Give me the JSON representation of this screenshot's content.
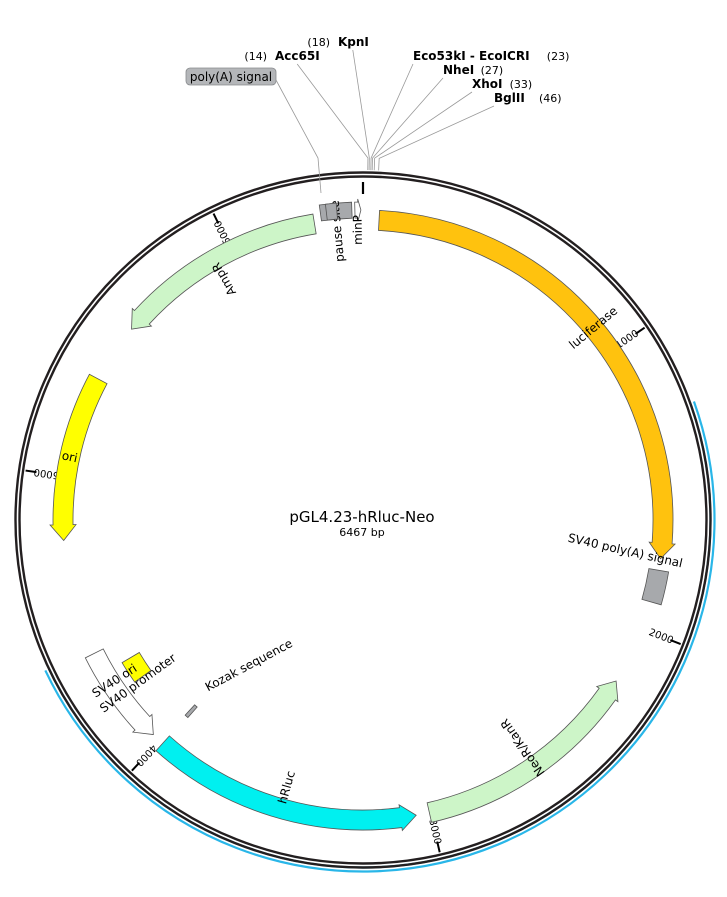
{
  "plasmid": {
    "name": "pGL4.23-hRluc-Neo",
    "length_label": "6467 bp",
    "length": 6467
  },
  "ticks": [
    {
      "pos": 1000,
      "label": "1000"
    },
    {
      "pos": 2000,
      "label": "2000"
    },
    {
      "pos": 3000,
      "label": "3000"
    },
    {
      "pos": 4000,
      "label": "4000"
    },
    {
      "pos": 5000,
      "label": "5000"
    },
    {
      "pos": 6000,
      "label": "6000"
    }
  ],
  "highlight": {
    "start": 1263,
    "end": 4395,
    "color": "#29b6e8"
  },
  "features": [
    {
      "name": "luciferase",
      "start": 55,
      "end": 1750,
      "type": "arrow",
      "dir": 1,
      "color": "#ffc20e",
      "radius": 300,
      "width": 20,
      "label_mode": "inside"
    },
    {
      "name": "SV40 poly(A) signal",
      "start": 1790,
      "end": 1902,
      "type": "box",
      "dir": 0,
      "color": "#a7a9ac",
      "radius": 300,
      "width": 20,
      "label_mode": "outside"
    },
    {
      "name": "NeoR/KanR",
      "start": 2200,
      "end": 3004,
      "type": "arrow",
      "dir": -1,
      "color": "#cdf5c8",
      "radius": 300,
      "width": 20,
      "label_mode": "inside"
    },
    {
      "name": "hRluc",
      "start": 3050,
      "end": 3986,
      "type": "arrow",
      "dir": -1,
      "color": "#00f0f0",
      "radius": 300,
      "width": 20,
      "label_mode": "inside"
    },
    {
      "name": "SV40 promoter",
      "start": 4030,
      "end": 4376,
      "type": "arrow",
      "dir": -1,
      "color": "#ffffff",
      "radius": 300,
      "width": 20,
      "label_mode": "inside"
    },
    {
      "name": "Kozak sequence",
      "start": 3980,
      "end": 3994,
      "type": "box",
      "dir": 0,
      "color": "#a7a9ac",
      "radius": 257,
      "width": 14,
      "label_mode": "outside_right"
    },
    {
      "name": "SV40 ori",
      "start": 4215,
      "end": 4300,
      "type": "box",
      "dir": 0,
      "color": "#ffff00",
      "radius": 270,
      "width": 20,
      "label_mode": "outside_above"
    },
    {
      "name": "ori",
      "start": 4780,
      "end": 5354,
      "type": "arrow",
      "dir": -1,
      "color": "#ffff00",
      "radius": 300,
      "width": 20,
      "label_mode": "inside"
    },
    {
      "name": "AmpR",
      "start": 5560,
      "end": 6300,
      "type": "arrow",
      "dir": -1,
      "color": "#cdf5c8",
      "radius": 300,
      "width": 20,
      "label_mode": "inside"
    },
    {
      "name": "pause site",
      "start": 6325,
      "end": 6430,
      "type": "box",
      "dir": 0,
      "color": "#a7a9ac",
      "radius": 310,
      "width": 16,
      "label_mode": "inside"
    },
    {
      "name": "minP",
      "start": 6440,
      "end": 6460,
      "type": "arrow",
      "dir": 1,
      "color": "#ffffff",
      "radius": 310,
      "width": 16,
      "label_mode": "inside"
    },
    {
      "name": "poly(A) signal",
      "start": 6345,
      "end": 6380,
      "type": "box",
      "dir": 0,
      "color": "#a7a9ac",
      "radius": 310,
      "width": 16,
      "label_mode": "hidden"
    }
  ],
  "sites": [
    {
      "name": "KpnI",
      "pos": "(18)",
      "bp": 18
    },
    {
      "name": "Acc65I",
      "pos": "(14)",
      "bp": 14
    },
    {
      "name": "Eco53kI - EcoICRI",
      "pos": "(23)",
      "bp": 23
    },
    {
      "name": "NheI",
      "pos": "(27)",
      "bp": 27
    },
    {
      "name": "XhoI",
      "pos": "(33)",
      "bp": 33
    },
    {
      "name": "BglII",
      "pos": "(46)",
      "bp": 46
    }
  ],
  "polya_callout": {
    "text": "poly(A) signal"
  },
  "colors": {
    "backbone": "#231f20",
    "gray_box": "#a7a9ac",
    "callout_bg": "#b4b6b9"
  }
}
